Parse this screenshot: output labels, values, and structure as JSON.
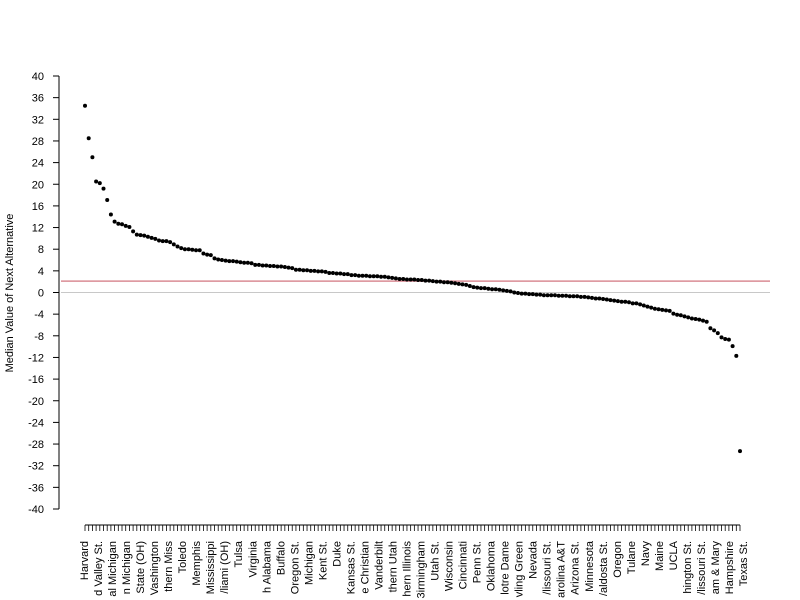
{
  "chart_data": {
    "type": "scatter",
    "title": "",
    "xlabel": "",
    "ylabel": "Median Value of Next Alternative",
    "ylim": [
      -40,
      40
    ],
    "yticks": [
      40,
      36,
      32,
      28,
      24,
      20,
      16,
      12,
      8,
      4,
      0,
      -4,
      -8,
      -12,
      -16,
      -20,
      -24,
      -28,
      -32,
      -36,
      -40
    ],
    "grid": false,
    "reference_lines": [
      {
        "y": 0,
        "color": "#c8c8c8"
      },
      {
        "y": 2.1,
        "color": "#d98c95"
      }
    ],
    "point_color": "#000000",
    "categories_labeled": [
      "Harvard",
      "d Valley St.",
      "al Michigan",
      "n Michigan",
      "State (OH)",
      "Vashington",
      "thern Miss",
      "Toledo",
      "Memphis",
      "Mississippi",
      "/liami (OH)",
      "Tulsa",
      "Virginia",
      "h Alabama",
      "Buffalo",
      "Oregon St.",
      "Michigan",
      "Kent St.",
      "Duke",
      "Kansas St.",
      "e Christian",
      "Vanderbilt",
      "thern Utah",
      "hern Illinois",
      "3irmingham",
      "Utah St.",
      "Wisconsin",
      "Cincinnati",
      "Penn St.",
      "Oklahoma",
      "lotre Dame",
      "vling Green",
      "Nevada",
      "/lissouri St.",
      "arolina A&T",
      "Arizona St.",
      "Minnesota",
      "/aldosta St.",
      "Oregon",
      "Tulane",
      "Navy",
      "Maine",
      "UCLA",
      "hington St.",
      "/lissouri St.",
      "am & Mary",
      "Hampshire",
      "Texas St."
    ],
    "values": [
      34.5,
      28.5,
      25.0,
      20.5,
      20.2,
      19.2,
      17.1,
      14.4,
      13.1,
      12.7,
      12.6,
      12.3,
      12.1,
      11.3,
      10.7,
      10.6,
      10.5,
      10.3,
      10.1,
      9.9,
      9.6,
      9.5,
      9.5,
      9.3,
      8.9,
      8.5,
      8.2,
      8.0,
      8.0,
      7.9,
      7.8,
      7.8,
      7.2,
      7.0,
      6.9,
      6.3,
      6.1,
      6.0,
      5.9,
      5.8,
      5.8,
      5.7,
      5.6,
      5.5,
      5.5,
      5.4,
      5.1,
      5.1,
      5.0,
      5.0,
      4.9,
      4.9,
      4.8,
      4.8,
      4.7,
      4.6,
      4.5,
      4.2,
      4.2,
      4.1,
      4.1,
      4.0,
      4.0,
      3.9,
      3.9,
      3.8,
      3.6,
      3.6,
      3.5,
      3.5,
      3.4,
      3.4,
      3.2,
      3.2,
      3.1,
      3.1,
      3.1,
      3.0,
      3.0,
      3.0,
      2.9,
      2.9,
      2.8,
      2.7,
      2.6,
      2.5,
      2.5,
      2.4,
      2.4,
      2.4,
      2.3,
      2.3,
      2.2,
      2.2,
      2.1,
      2.0,
      2.0,
      1.9,
      1.9,
      1.8,
      1.7,
      1.6,
      1.5,
      1.4,
      1.2,
      1.0,
      0.9,
      0.8,
      0.8,
      0.7,
      0.6,
      0.6,
      0.5,
      0.4,
      0.3,
      0.2,
      0.0,
      -0.1,
      -0.2,
      -0.2,
      -0.3,
      -0.3,
      -0.4,
      -0.4,
      -0.5,
      -0.5,
      -0.5,
      -0.5,
      -0.6,
      -0.6,
      -0.6,
      -0.7,
      -0.7,
      -0.7,
      -0.8,
      -0.8,
      -0.9,
      -1.0,
      -1.1,
      -1.1,
      -1.2,
      -1.3,
      -1.4,
      -1.5,
      -1.6,
      -1.7,
      -1.7,
      -1.8,
      -2.0,
      -2.0,
      -2.2,
      -2.4,
      -2.6,
      -2.8,
      -3.0,
      -3.1,
      -3.2,
      -3.3,
      -3.4,
      -3.9,
      -4.1,
      -4.2,
      -4.4,
      -4.6,
      -4.8,
      -4.9,
      -5.0,
      -5.2,
      -5.4,
      -6.6,
      -7.0,
      -7.5,
      -8.3,
      -8.6,
      -8.7,
      -9.9,
      -11.7,
      -29.3
    ]
  }
}
